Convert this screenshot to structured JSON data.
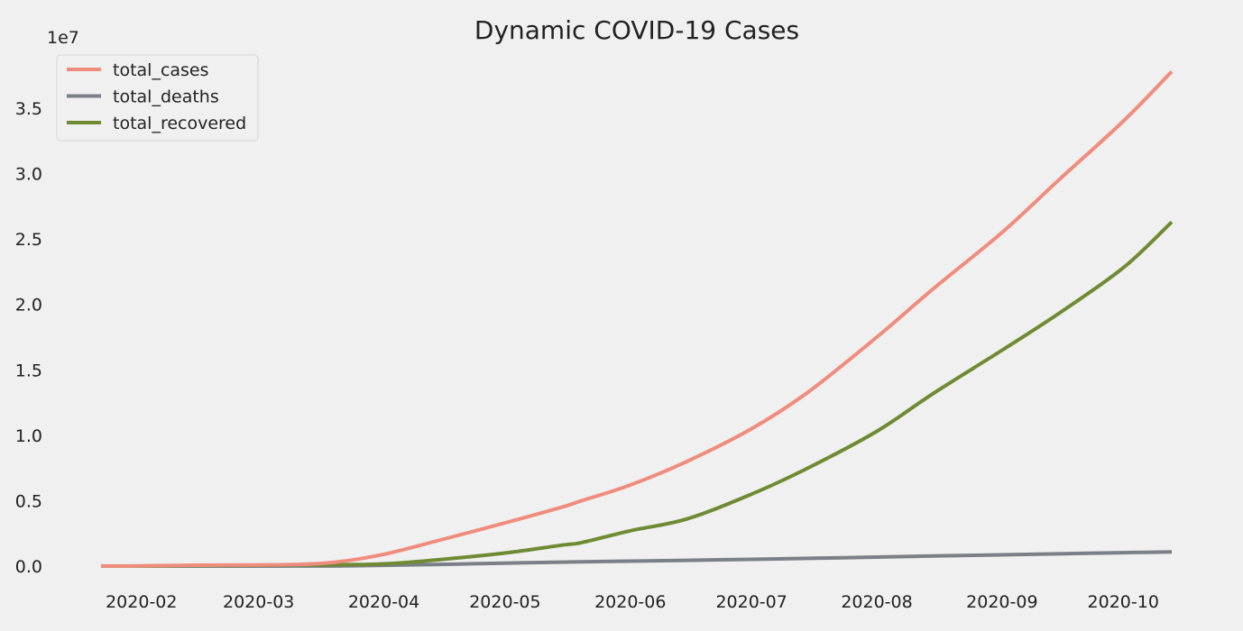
{
  "chart_data": {
    "type": "line",
    "title": "Dynamic COVID-19 Cases",
    "xlabel": "",
    "ylabel": "",
    "y_offset_label": "1e7",
    "ylim": [
      0,
      3.9
    ],
    "xlim": [
      "2020-01-22",
      "2020-10-13"
    ],
    "grid": false,
    "legend_position": "top-left",
    "x_ticks": [
      {
        "date": "2020-02-01",
        "label": "2020-02"
      },
      {
        "date": "2020-03-01",
        "label": "2020-03"
      },
      {
        "date": "2020-04-01",
        "label": "2020-04"
      },
      {
        "date": "2020-05-01",
        "label": "2020-05"
      },
      {
        "date": "2020-06-01",
        "label": "2020-06"
      },
      {
        "date": "2020-07-01",
        "label": "2020-07"
      },
      {
        "date": "2020-08-01",
        "label": "2020-08"
      },
      {
        "date": "2020-09-01",
        "label": "2020-09"
      },
      {
        "date": "2020-10-01",
        "label": "2020-10"
      }
    ],
    "y_ticks": [
      {
        "value": 0.0,
        "label": "0.0"
      },
      {
        "value": 0.5,
        "label": "0.5"
      },
      {
        "value": 1.0,
        "label": "1.0"
      },
      {
        "value": 1.5,
        "label": "1.5"
      },
      {
        "value": 2.0,
        "label": "2.0"
      },
      {
        "value": 2.5,
        "label": "2.5"
      },
      {
        "value": 3.0,
        "label": "3.0"
      },
      {
        "value": 3.5,
        "label": "3.5"
      }
    ],
    "x": [
      "2020-01-22",
      "2020-02-01",
      "2020-02-15",
      "2020-03-01",
      "2020-03-10",
      "2020-03-20",
      "2020-04-01",
      "2020-04-15",
      "2020-05-01",
      "2020-05-15",
      "2020-05-20",
      "2020-06-01",
      "2020-06-15",
      "2020-07-01",
      "2020-07-15",
      "2020-08-01",
      "2020-08-15",
      "2020-09-01",
      "2020-09-15",
      "2020-10-01",
      "2020-10-13"
    ],
    "series": [
      {
        "name": "total_cases",
        "color": "#f08c7e",
        "values": [
          0.0006,
          0.0012,
          0.007,
          0.009,
          0.012,
          0.03,
          0.09,
          0.2,
          0.33,
          0.45,
          0.5,
          0.62,
          0.8,
          1.05,
          1.33,
          1.75,
          2.12,
          2.55,
          2.95,
          3.4,
          3.78
        ]
      },
      {
        "name": "total_deaths",
        "color": "#7a8087",
        "values": [
          0.0,
          0.0,
          0.0002,
          0.0003,
          0.0004,
          0.001,
          0.006,
          0.013,
          0.023,
          0.03,
          0.033,
          0.038,
          0.044,
          0.052,
          0.059,
          0.069,
          0.077,
          0.086,
          0.094,
          0.103,
          0.108
        ]
      },
      {
        "name": "total_recovered",
        "color": "#6f8a33",
        "values": [
          0.0,
          0.0002,
          0.0045,
          0.006,
          0.008,
          0.01,
          0.017,
          0.05,
          0.1,
          0.16,
          0.18,
          0.27,
          0.36,
          0.55,
          0.75,
          1.03,
          1.32,
          1.65,
          1.93,
          2.28,
          2.63
        ]
      }
    ]
  }
}
